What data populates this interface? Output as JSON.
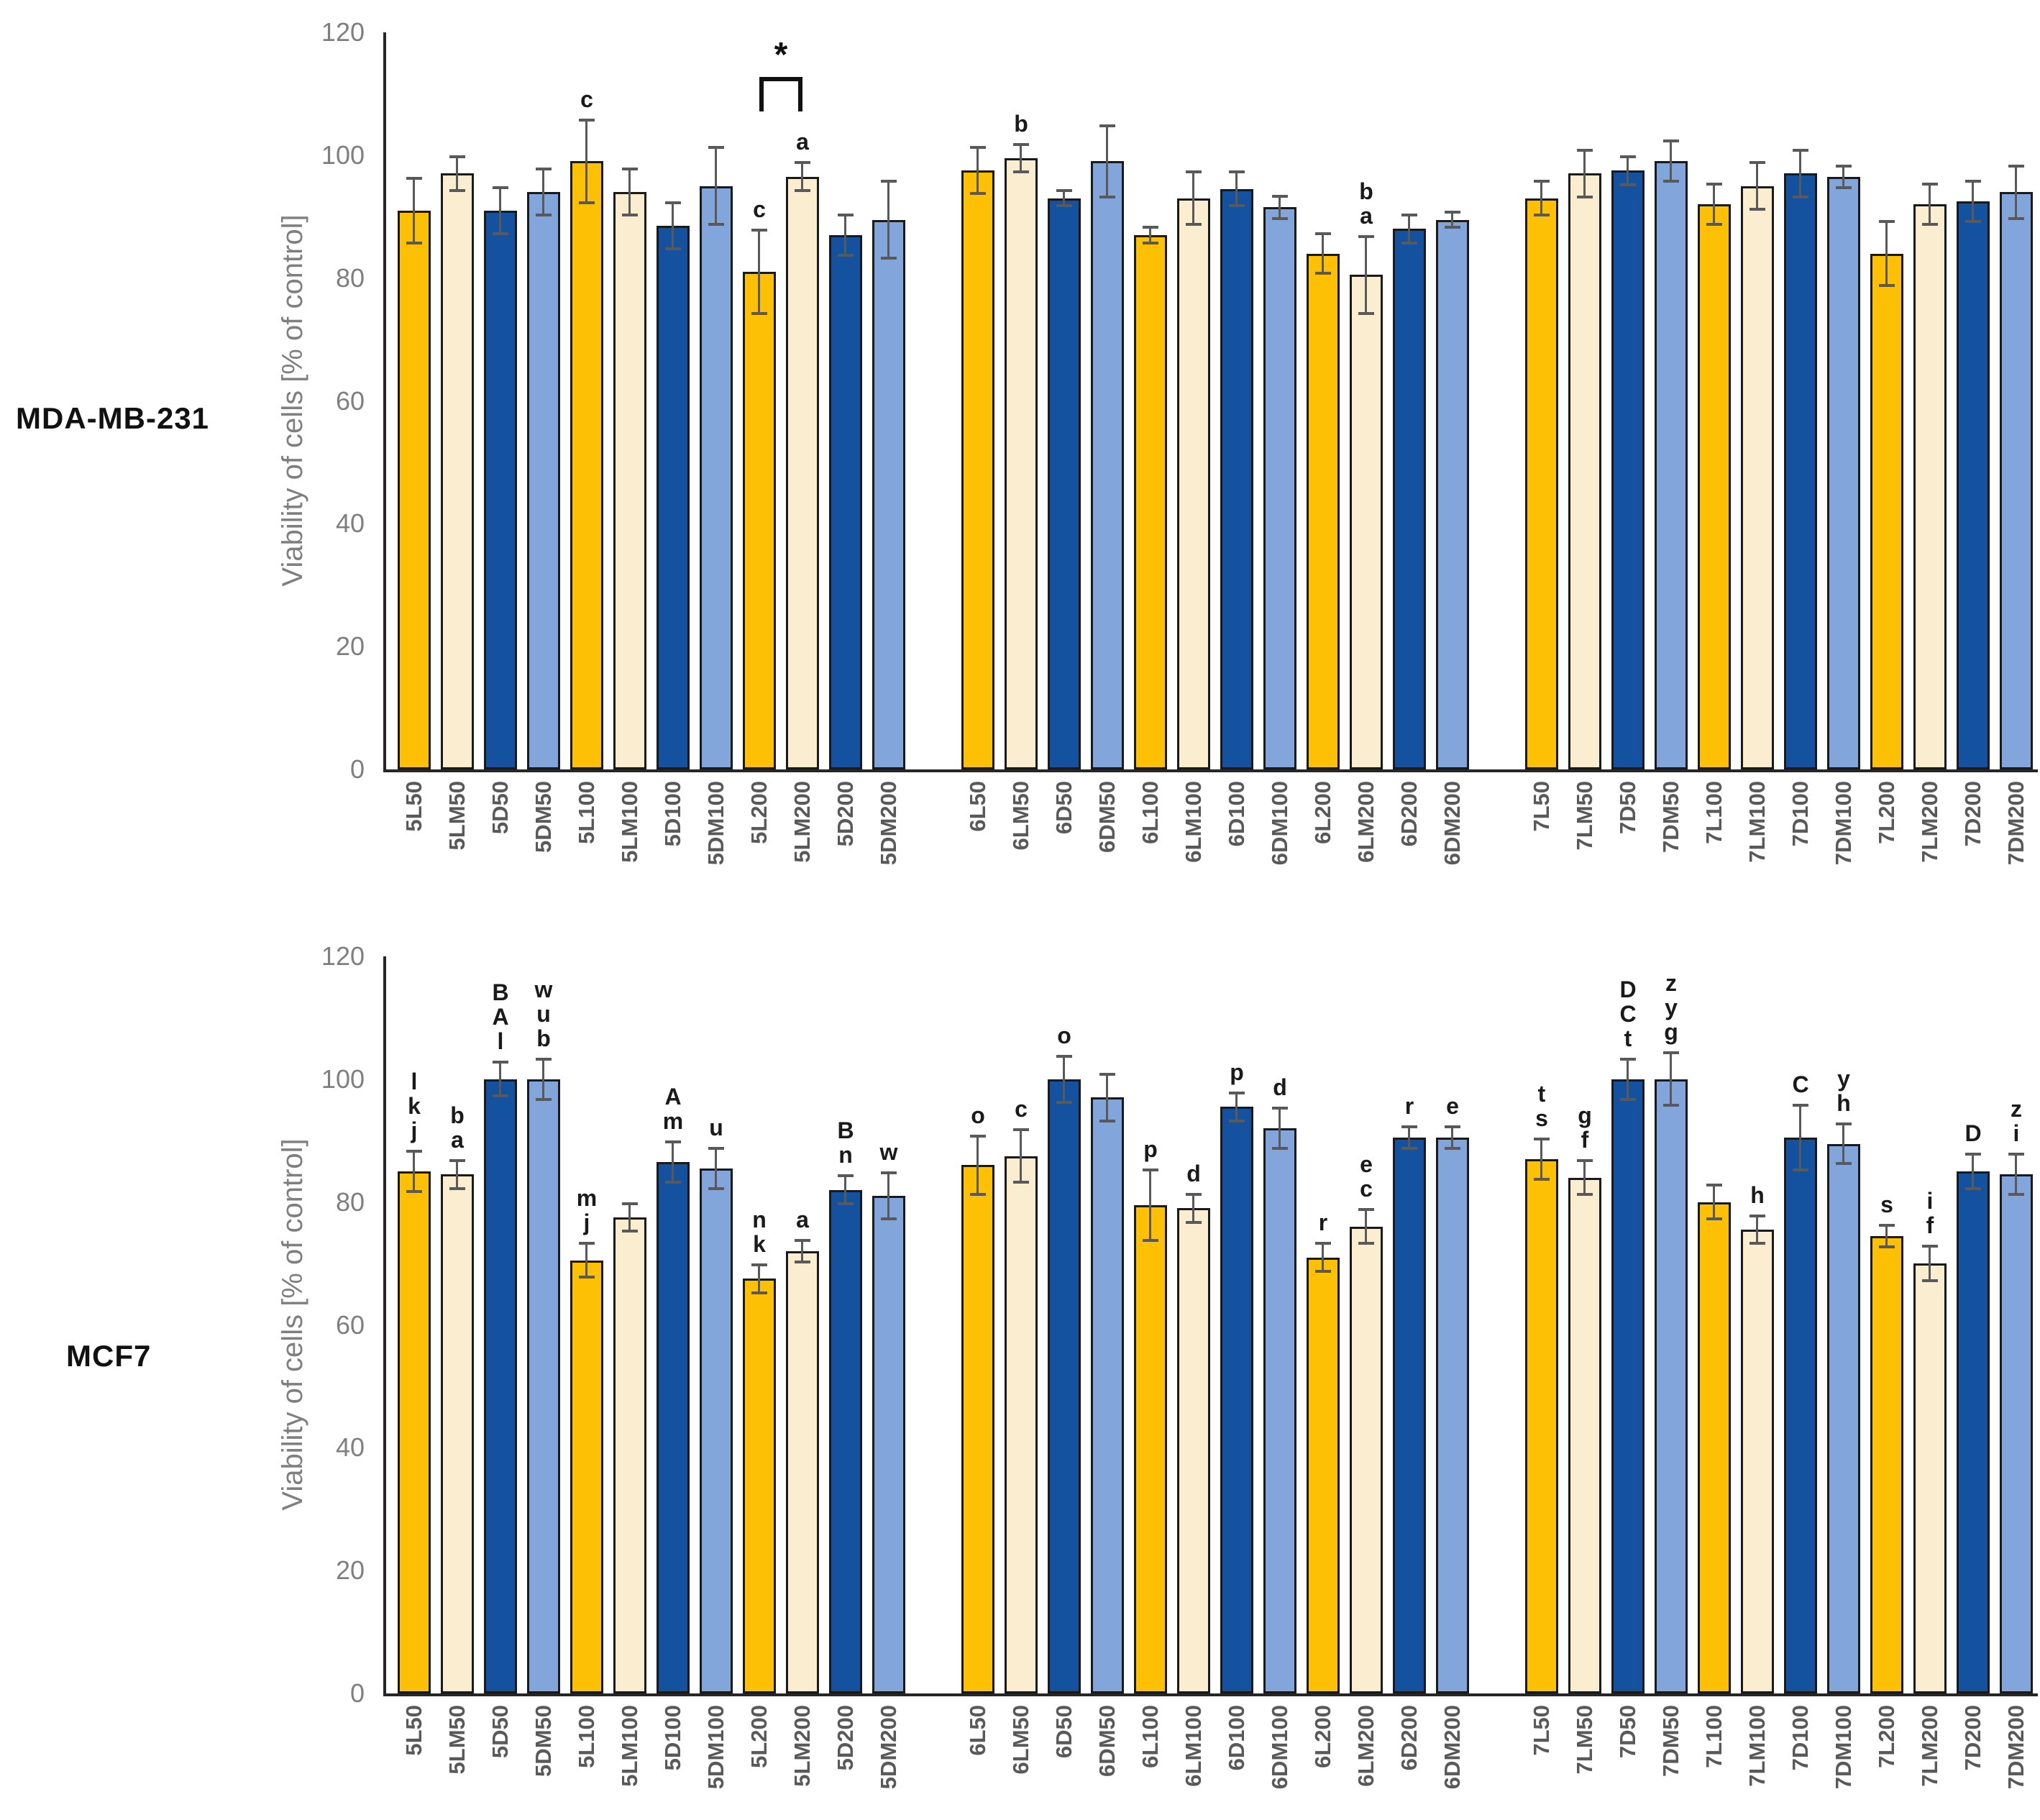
{
  "figure": {
    "ylabel": "Viability of cells [% of control]",
    "row_labels": [
      "MDA-MB-231",
      "MCF7"
    ],
    "colors": {
      "orange": "#FDC004",
      "cream": "#FBEED0",
      "dark_blue": "#14519E",
      "light_blue": "#82A5DC",
      "bar_border": "#1a1a1a",
      "error_bar": "#595959",
      "axis": "#262626",
      "y_tick_label": "#7f7f7f",
      "x_tick_label": "#595959",
      "letter_label": "#1a1a1a"
    },
    "bar_color_cycle": [
      "orange",
      "cream",
      "dark_blue",
      "light_blue"
    ]
  },
  "chart_data": [
    {
      "type": "bar",
      "row_label": "MDA-MB-231",
      "ylabel": "Viability of cells [% of control]",
      "ylim": [
        0,
        120
      ],
      "yticks": [
        120,
        100,
        80,
        60,
        40,
        20,
        0
      ],
      "grid": false,
      "legend": false,
      "groups": [
        {
          "name": "5",
          "categories": [
            "5L50",
            "5LM50",
            "5D50",
            "5DM50",
            "5L100",
            "5LM100",
            "5D100",
            "5DM100",
            "5L200",
            "5LM200",
            "5D200",
            "5DM200"
          ],
          "values": [
            91,
            97,
            91,
            94,
            99,
            94,
            88.5,
            95,
            81,
            96.5,
            87,
            89.5
          ],
          "errors": [
            5.5,
            3,
            4,
            4,
            7,
            4,
            4,
            6.5,
            7,
            2.5,
            3.5,
            6.5
          ],
          "letters": [
            [],
            [],
            [],
            [],
            [
              "c"
            ],
            [],
            [],
            [],
            [
              "c"
            ],
            [
              "a"
            ],
            [],
            []
          ]
        },
        {
          "name": "6",
          "categories": [
            "6L50",
            "6LM50",
            "6D50",
            "6DM50",
            "6L100",
            "6LM100",
            "6D100",
            "6DM100",
            "6L200",
            "6LM200",
            "6D200",
            "6DM200"
          ],
          "values": [
            97.5,
            99.5,
            93,
            99,
            87,
            93,
            94.5,
            91.5,
            84,
            80.5,
            88,
            89.5
          ],
          "errors": [
            4,
            2.5,
            1.5,
            6,
            1.5,
            4.5,
            3,
            2,
            3.5,
            6.5,
            2.5,
            1.5
          ],
          "letters": [
            [],
            [
              "b"
            ],
            [],
            [],
            [],
            [],
            [],
            [],
            [],
            [
              "b",
              "a"
            ],
            [],
            []
          ]
        },
        {
          "name": "7",
          "categories": [
            "7L50",
            "7LM50",
            "7D50",
            "7DM50",
            "7L100",
            "7LM100",
            "7D100",
            "7DM100",
            "7L200",
            "7LM200",
            "7D200",
            "7DM200"
          ],
          "values": [
            93,
            97,
            97.5,
            99,
            92,
            95,
            97,
            96.5,
            84,
            92,
            92.5,
            94
          ],
          "errors": [
            3,
            4,
            2.5,
            3.5,
            3.5,
            4,
            4,
            2,
            5.5,
            3.5,
            3.5,
            4.5
          ],
          "letters": [
            [],
            [],
            [],
            [],
            [],
            [],
            [],
            [],
            [],
            [],
            [],
            []
          ]
        }
      ],
      "annotations": [
        {
          "type": "bracket",
          "symbol": "*",
          "group_index": 0,
          "from_category": "5L200",
          "to_category": "5LM200"
        }
      ]
    },
    {
      "type": "bar",
      "row_label": "MCF7",
      "ylabel": "Viability of cells [% of control]",
      "ylim": [
        0,
        120
      ],
      "yticks": [
        120,
        100,
        80,
        60,
        40,
        20,
        0
      ],
      "grid": false,
      "legend": false,
      "groups": [
        {
          "name": "5",
          "categories": [
            "5L50",
            "5LM50",
            "5D50",
            "5DM50",
            "5L100",
            "5LM100",
            "5D100",
            "5DM100",
            "5L200",
            "5LM200",
            "5D200",
            "5DM200"
          ],
          "values": [
            85,
            84.5,
            100,
            100,
            70.5,
            77.5,
            86.5,
            85.5,
            67.5,
            72,
            82,
            81
          ],
          "errors": [
            3.5,
            2.5,
            3,
            3.5,
            3,
            2.5,
            3.5,
            3.5,
            2.5,
            2,
            2.5,
            4
          ],
          "letters": [
            [
              "l",
              "k",
              "j"
            ],
            [
              "b",
              "a"
            ],
            [
              "B",
              "A",
              "l"
            ],
            [
              "w",
              "u",
              "b"
            ],
            [
              "m",
              "j"
            ],
            [],
            [
              "A",
              "m"
            ],
            [
              "u"
            ],
            [
              "n",
              "k"
            ],
            [
              "a"
            ],
            [
              "B",
              "n"
            ],
            [
              "w"
            ]
          ]
        },
        {
          "name": "6",
          "categories": [
            "6L50",
            "6LM50",
            "6D50",
            "6DM50",
            "6L100",
            "6LM100",
            "6D100",
            "6DM100",
            "6L200",
            "6LM200",
            "6D200",
            "6DM200"
          ],
          "values": [
            86,
            87.5,
            100,
            97,
            79.5,
            79,
            95.5,
            92,
            71,
            76,
            90.5,
            90.5
          ],
          "errors": [
            5,
            4.5,
            4,
            4,
            6,
            2.5,
            2.5,
            3.5,
            2.5,
            3,
            2,
            2
          ],
          "letters": [
            [
              "o"
            ],
            [
              "c"
            ],
            [
              "o"
            ],
            [],
            [
              "p"
            ],
            [
              "d"
            ],
            [
              "p"
            ],
            [
              "d"
            ],
            [
              "r"
            ],
            [
              "e",
              "c"
            ],
            [
              "r"
            ],
            [
              "e"
            ]
          ]
        },
        {
          "name": "7",
          "categories": [
            "7L50",
            "7LM50",
            "7D50",
            "7DM50",
            "7L100",
            "7LM100",
            "7D100",
            "7DM100",
            "7L200",
            "7LM200",
            "7D200",
            "7DM200"
          ],
          "values": [
            87,
            84,
            100,
            100,
            80,
            75.5,
            90.5,
            89.5,
            74.5,
            70,
            85,
            84.5
          ],
          "errors": [
            3.5,
            3,
            3.5,
            4.5,
            3,
            2.5,
            5.5,
            3.5,
            2,
            3,
            3,
            3.5
          ],
          "letters": [
            [
              "t",
              "s"
            ],
            [
              "g",
              "f"
            ],
            [
              "D",
              "C",
              "t"
            ],
            [
              "z",
              "y",
              "g"
            ],
            [],
            [
              "h"
            ],
            [
              "C"
            ],
            [
              "y",
              "h"
            ],
            [
              "s"
            ],
            [
              "i",
              "f"
            ],
            [
              "D"
            ],
            [
              "z",
              "i"
            ]
          ]
        }
      ],
      "annotations": []
    }
  ]
}
